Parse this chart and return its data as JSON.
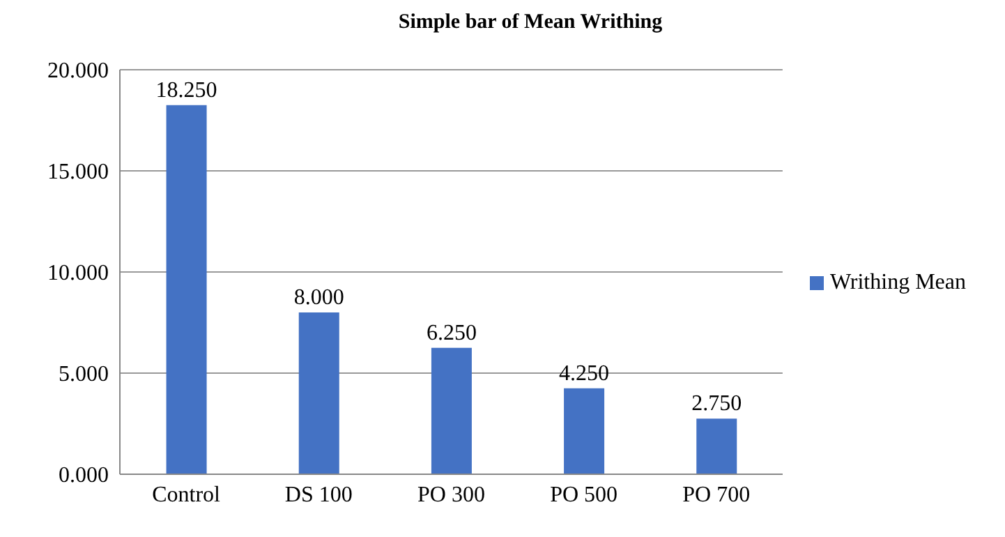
{
  "chart_data": {
    "type": "bar",
    "title": "Simple bar of Mean Writhing",
    "categories": [
      "Control",
      "DS 100",
      "PO 300",
      "PO 500",
      "PO 700"
    ],
    "series": [
      {
        "name": "Writhing Mean",
        "color": "#4472c4",
        "values": [
          18.25,
          8,
          6.25,
          4.25,
          2.75
        ],
        "value_labels": [
          "18.250",
          "8.000",
          "6.250",
          "4.250",
          "2.750"
        ]
      }
    ],
    "ylim": [
      0,
      20
    ],
    "yticks": [
      {
        "value": 0,
        "label": "0.000"
      },
      {
        "value": 5,
        "label": "5.000"
      },
      {
        "value": 10,
        "label": "10.000"
      },
      {
        "value": 15,
        "label": "15.000"
      },
      {
        "value": 20,
        "label": "20.000"
      }
    ],
    "grid": "y",
    "legend": "right"
  }
}
